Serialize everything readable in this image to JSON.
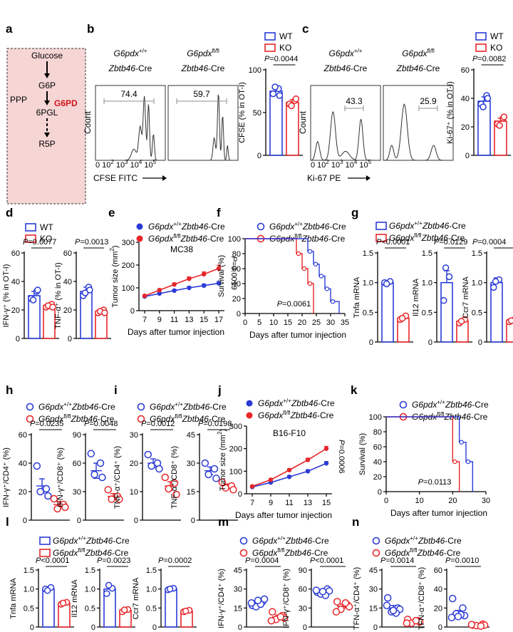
{
  "colors": {
    "wt": "#2b3bd6",
    "ko": "#e8262a",
    "pathway_bg": "#f6d5d5",
    "g6pd": "#d1141b",
    "gate": "#8c8c8c"
  },
  "panel_letters": [
    "a",
    "b",
    "c",
    "d",
    "e",
    "f",
    "g",
    "h",
    "i",
    "j",
    "k",
    "l",
    "m",
    "n"
  ],
  "panel_a": {
    "nodes": [
      "Glucose",
      "G6P",
      "6PGL",
      "R5P"
    ],
    "ppp": "PPP",
    "enzyme": "G6PD"
  },
  "flow_b": {
    "legend": [
      {
        "label": "WT",
        "group": "wt"
      },
      {
        "label": "KO",
        "group": "ko"
      }
    ],
    "plots": [
      {
        "title1": "G6pdx",
        "sup": "+/+",
        "title2": "Zbtb46-Cre",
        "gate": "74.4"
      },
      {
        "title1": "G6pdx",
        "sup": "fl/fl",
        "title2": "Zbtb46-Cre",
        "gate": "59.7"
      }
    ],
    "xticks": [
      "0",
      "10",
      "2",
      "10",
      "3",
      "10",
      "4",
      "10",
      "5"
    ],
    "xlabel": "CFSE FITC",
    "ylabel": "Count"
  },
  "flow_c": {
    "legend": [
      {
        "label": "WT",
        "group": "wt"
      },
      {
        "label": "KO",
        "group": "ko"
      }
    ],
    "plots": [
      {
        "title1": "G6pdx",
        "sup": "+/+",
        "title2": "Zbtb46-Cre",
        "gate": "43.3"
      },
      {
        "title1": "G6pdx",
        "sup": "fl/fl",
        "title2": "Zbtb46-Cre",
        "gate": "25.9"
      }
    ],
    "xlabel": "Ki-67 PE"
  },
  "labels": {
    "wt": "WT",
    "ko": "KO",
    "g6pdx": "G6pdx",
    "zbtb": "Zbtb46",
    "cre": "-Cre",
    "sup_wt": "+/+",
    "sup_ko": "fl/fl",
    "mc38": "MC38",
    "b16": "B16-F10",
    "days": "Days after tumor injection",
    "tumor_size": "Tumor size (mm",
    "survival": "Survival (%)",
    "p_e": "P=0.0019",
    "p_f": "P=0.0061",
    "p_j": "P=0.0006",
    "p_k": "P=0.0113"
  },
  "chart_data": [
    {
      "id": "b_bar",
      "type": "bar",
      "ylabel": "CFSE (% in OT-I)",
      "ylim": [
        0,
        100
      ],
      "yticks": [
        "0",
        "50",
        "100"
      ],
      "p": "P=0.0044",
      "series": [
        {
          "group": "wt",
          "mean": 75,
          "sem": 4,
          "points": [
            72,
            78,
            80,
            70
          ]
        },
        {
          "group": "ko",
          "mean": 62,
          "sem": 3,
          "points": [
            60,
            64,
            58,
            66
          ]
        }
      ]
    },
    {
      "id": "c_bar",
      "type": "bar",
      "ylabel": "Ki-67⁺ (% in OT-I)",
      "ylim": [
        0,
        60
      ],
      "yticks": [
        "0",
        "20",
        "40",
        "60"
      ],
      "p": "P=0.0082",
      "series": [
        {
          "group": "wt",
          "mean": 38,
          "sem": 3,
          "points": [
            36,
            42,
            34,
            40
          ]
        },
        {
          "group": "ko",
          "mean": 24,
          "sem": 2,
          "points": [
            22,
            26,
            21,
            27
          ]
        }
      ]
    },
    {
      "id": "d1",
      "type": "bar",
      "ylabel": "IFN-γ⁺ (% in OT-I)",
      "ylim": [
        0,
        60
      ],
      "yticks": [
        "0",
        "20",
        "40",
        "60"
      ],
      "p": "P=0.0077",
      "series": [
        {
          "group": "wt",
          "mean": 30,
          "sem": 3,
          "points": [
            28,
            33,
            27,
            34
          ]
        },
        {
          "group": "ko",
          "mean": 23,
          "sem": 1,
          "points": [
            22,
            24,
            23,
            22
          ]
        }
      ]
    },
    {
      "id": "d2",
      "type": "bar",
      "ylabel": "TNF-α⁺ (% in OT-I)",
      "ylim": [
        0,
        60
      ],
      "yticks": [
        "0",
        "20",
        "40",
        "60"
      ],
      "p": "P=0.0013",
      "series": [
        {
          "group": "wt",
          "mean": 33,
          "sem": 3,
          "points": [
            30,
            36,
            32,
            34
          ]
        },
        {
          "group": "ko",
          "mean": 19,
          "sem": 1,
          "points": [
            18,
            20,
            19,
            18
          ]
        }
      ]
    },
    {
      "id": "e",
      "type": "line",
      "xlabel": "Days after tumor injection",
      "ylabel": "Tumor size (mm2)",
      "x": [
        7,
        9,
        11,
        13,
        15,
        17
      ],
      "ylim": [
        0,
        300
      ],
      "yticks": [
        "0",
        "100",
        "200",
        "300"
      ],
      "title": "MC38",
      "p": "P=0.0019",
      "series": [
        {
          "group": "wt",
          "name": "G6pdx+/+Zbtb46-Cre",
          "values": [
            62,
            75,
            88,
            100,
            110,
            120
          ],
          "sem": [
            4,
            5,
            5,
            6,
            7,
            8
          ]
        },
        {
          "group": "ko",
          "name": "G6pdxfl/flZbtb46-Cre",
          "values": [
            65,
            90,
            115,
            140,
            160,
            185
          ],
          "sem": [
            4,
            6,
            7,
            8,
            10,
            14
          ]
        }
      ]
    },
    {
      "id": "f",
      "type": "line",
      "xlabel": "Days after tumor injection",
      "ylabel": "Survival (%)",
      "x": [
        0,
        5,
        10,
        15,
        20,
        25,
        30,
        35
      ],
      "ylim": [
        0,
        100
      ],
      "yticks": [
        "0",
        "20",
        "40",
        "60",
        "80",
        "100"
      ],
      "p": "P=0.0061",
      "series": [
        {
          "group": "wt",
          "name": "G6pdx+/+Zbtb46-Cre",
          "steps": [
            [
              0,
              100
            ],
            [
              22,
              100
            ],
            [
              22,
              83
            ],
            [
              24,
              83
            ],
            [
              24,
              66
            ],
            [
              26,
              66
            ],
            [
              26,
              50
            ],
            [
              28,
              50
            ],
            [
              28,
              33
            ],
            [
              30,
              33
            ],
            [
              30,
              16
            ],
            [
              33,
              16
            ],
            [
              33,
              0
            ]
          ]
        },
        {
          "group": "ko",
          "name": "G6pdxfl/flZbtb46-Cre",
          "steps": [
            [
              0,
              100
            ],
            [
              18,
              100
            ],
            [
              18,
              80
            ],
            [
              20,
              80
            ],
            [
              20,
              60
            ],
            [
              22,
              60
            ],
            [
              22,
              40
            ],
            [
              24,
              40
            ],
            [
              24,
              0
            ]
          ]
        }
      ]
    },
    {
      "id": "g1",
      "type": "bar",
      "ylabel": "Tnfa mRNA",
      "ylim": [
        0,
        1.5
      ],
      "yticks": [
        "0",
        "0.5",
        "1.0",
        "1.5"
      ],
      "p": "P<0.0001",
      "series": [
        {
          "group": "wt",
          "mean": 1.0,
          "sem": 0.03,
          "points": [
            1.0,
            1.02,
            0.98
          ]
        },
        {
          "group": "ko",
          "mean": 0.4,
          "sem": 0.04,
          "points": [
            0.38,
            0.44,
            0.4
          ]
        }
      ]
    },
    {
      "id": "g2",
      "type": "bar",
      "ylabel": "Il12 mRNA",
      "ylim": [
        0,
        1.5
      ],
      "yticks": [
        "0",
        "0.5",
        "1.0",
        "1.5"
      ],
      "p": "P=0.0129",
      "series": [
        {
          "group": "wt",
          "mean": 1.0,
          "sem": 0.2,
          "points": [
            0.7,
            1.1,
            1.25
          ]
        },
        {
          "group": "ko",
          "mean": 0.35,
          "sem": 0.04,
          "points": [
            0.32,
            0.38,
            0.35
          ]
        }
      ]
    },
    {
      "id": "g3",
      "type": "bar",
      "ylabel": "Ccr7 mRNA",
      "ylim": [
        0,
        1.5
      ],
      "yticks": [
        "0",
        "0.5",
        "1.0",
        "1.5"
      ],
      "p": "P=0.0004",
      "series": [
        {
          "group": "wt",
          "mean": 1.0,
          "sem": 0.08,
          "points": [
            0.92,
            1.05,
            1.02
          ]
        },
        {
          "group": "ko",
          "mean": 0.36,
          "sem": 0.03,
          "points": [
            0.34,
            0.38,
            0.36
          ]
        }
      ]
    },
    {
      "id": "h1",
      "type": "scatter",
      "ylabel": "IFN-γ⁺/CD4⁺ (%)",
      "ylim": [
        0,
        60
      ],
      "yticks": [
        "0",
        "20",
        "40",
        "60"
      ],
      "p": "P=0.0235",
      "series": [
        {
          "group": "wt",
          "mean": 24,
          "sem": 5,
          "points": [
            38,
            22,
            20,
            17
          ]
        },
        {
          "group": "ko",
          "mean": 11,
          "sem": 2,
          "points": [
            15,
            11,
            8,
            9
          ]
        }
      ]
    },
    {
      "id": "h2",
      "type": "scatter",
      "ylabel": "IFN-γ⁺/CD8⁺ (%)",
      "ylim": [
        0,
        90
      ],
      "yticks": [
        "0",
        "30",
        "60",
        "90"
      ],
      "p": "P=0.0048",
      "series": [
        {
          "group": "wt",
          "mean": 52,
          "sem": 8,
          "points": [
            70,
            60,
            48,
            45
          ]
        },
        {
          "group": "ko",
          "mean": 25,
          "sem": 3,
          "points": [
            32,
            25,
            22,
            22
          ]
        }
      ]
    },
    {
      "id": "i1",
      "type": "scatter",
      "ylabel": "TNF-α⁺/CD4⁺ (%)",
      "ylim": [
        0,
        30
      ],
      "yticks": [
        "0",
        "10",
        "20",
        "30"
      ],
      "p": "P=0.0012",
      "series": [
        {
          "group": "wt",
          "mean": 20,
          "sem": 1.5,
          "points": [
            23,
            20,
            19,
            18
          ]
        },
        {
          "group": "ko",
          "mean": 12,
          "sem": 1.5,
          "points": [
            15,
            13,
            11,
            9
          ]
        }
      ]
    },
    {
      "id": "i2",
      "type": "scatter",
      "ylabel": "TNF-α⁺/CD8⁺ (%)",
      "ylim": [
        0,
        45
      ],
      "yticks": [
        "0",
        "15",
        "30",
        "45"
      ],
      "p": "P=0.0198",
      "series": [
        {
          "group": "wt",
          "mean": 26,
          "sem": 2,
          "points": [
            30,
            27,
            24,
            22
          ]
        },
        {
          "group": "ko",
          "mean": 18,
          "sem": 1,
          "points": [
            20,
            18,
            17,
            16
          ]
        }
      ]
    },
    {
      "id": "j",
      "type": "line",
      "xlabel": "Days after tumor injection",
      "ylabel": "Tumor size (mm2)",
      "x": [
        7,
        9,
        11,
        13,
        15
      ],
      "ylim": [
        0,
        300
      ],
      "yticks": [
        "0",
        "100",
        "200",
        "300"
      ],
      "title": "B16-F10",
      "p": "P=0.0006",
      "series": [
        {
          "group": "wt",
          "name": "G6pdx+/+Zbtb46-Cre",
          "values": [
            30,
            50,
            75,
            100,
            135
          ],
          "sem": [
            3,
            4,
            5,
            6,
            8
          ]
        },
        {
          "group": "ko",
          "name": "G6pdxfl/flZbtb46-Cre",
          "values": [
            33,
            62,
            105,
            150,
            200
          ],
          "sem": [
            3,
            5,
            6,
            8,
            10
          ]
        }
      ]
    },
    {
      "id": "k",
      "type": "line",
      "xlabel": "Days after tumor injection",
      "ylabel": "Survival (%)",
      "x": [
        0,
        10,
        20,
        30
      ],
      "ylim": [
        0,
        100
      ],
      "yticks": [
        "0",
        "20",
        "40",
        "60",
        "80",
        "100"
      ],
      "p": "P=0.0113",
      "series": [
        {
          "group": "wt",
          "name": "G6pdx+/+Zbtb46-Cre",
          "steps": [
            [
              0,
              100
            ],
            [
              22,
              100
            ],
            [
              22,
              66
            ],
            [
              24,
              66
            ],
            [
              24,
              40
            ],
            [
              26,
              40
            ],
            [
              26,
              0
            ]
          ]
        },
        {
          "group": "ko",
          "name": "G6pdxfl/flZbtb46-Cre",
          "steps": [
            [
              0,
              100
            ],
            [
              20,
              100
            ],
            [
              20,
              40
            ],
            [
              22,
              40
            ],
            [
              22,
              0
            ]
          ]
        }
      ]
    },
    {
      "id": "l1",
      "type": "bar",
      "ylabel": "Tnfa mRNA",
      "ylim": [
        0,
        1.5
      ],
      "yticks": [
        "0",
        "0.5",
        "1.0",
        "1.5"
      ],
      "p": "P<0.0001",
      "series": [
        {
          "group": "wt",
          "mean": 1.0,
          "sem": 0.03,
          "points": [
            1.0,
            1.04,
            0.96
          ]
        },
        {
          "group": "ko",
          "mean": 0.63,
          "sem": 0.02,
          "points": [
            0.6,
            0.65,
            0.63
          ]
        }
      ]
    },
    {
      "id": "l2",
      "type": "bar",
      "ylabel": "Il12 mRNA",
      "ylim": [
        0,
        1.5
      ],
      "yticks": [
        "0",
        "0.5",
        "1.0",
        "1.5"
      ],
      "p": "P=0.0023",
      "series": [
        {
          "group": "wt",
          "mean": 1.0,
          "sem": 0.07,
          "points": [
            0.88,
            1.02,
            1.1
          ]
        },
        {
          "group": "ko",
          "mean": 0.44,
          "sem": 0.03,
          "points": [
            0.4,
            0.46,
            0.45
          ]
        }
      ]
    },
    {
      "id": "l3",
      "type": "bar",
      "ylabel": "Ccr7 mRNA",
      "ylim": [
        0,
        1.5
      ],
      "yticks": [
        "0",
        "0.5",
        "1.0",
        "1.5"
      ],
      "p": "P=0.0002",
      "series": [
        {
          "group": "wt",
          "mean": 1.0,
          "sem": 0.02,
          "points": [
            0.98,
            1.02,
            1.0
          ]
        },
        {
          "group": "ko",
          "mean": 0.42,
          "sem": 0.02,
          "points": [
            0.4,
            0.44,
            0.42
          ]
        }
      ]
    },
    {
      "id": "m1",
      "type": "scatter",
      "ylabel": "IFN-γ⁺/CD4⁺ (%)",
      "ylim": [
        0,
        45
      ],
      "yticks": [
        "0",
        "15",
        "30",
        "45"
      ],
      "p": "P=0.0004",
      "series": [
        {
          "group": "wt",
          "mean": 19,
          "sem": 1.5,
          "points": [
            17,
            20,
            16,
            22,
            19,
            18,
            21
          ]
        },
        {
          "group": "ko",
          "mean": 8,
          "sem": 1.5,
          "points": [
            12,
            9,
            6,
            7,
            5,
            8
          ]
        }
      ]
    },
    {
      "id": "m2",
      "type": "scatter",
      "ylabel": "IFN-γ⁺/CD8⁺ (%)",
      "ylim": [
        0,
        90
      ],
      "yticks": [
        "0",
        "30",
        "60",
        "90"
      ],
      "p": "P<0.0001",
      "series": [
        {
          "group": "wt",
          "mean": 56,
          "sem": 2,
          "points": [
            55,
            60,
            52,
            57,
            58,
            50,
            56
          ]
        },
        {
          "group": "ko",
          "mean": 33,
          "sem": 3,
          "points": [
            40,
            35,
            28,
            32,
            24,
            38
          ]
        }
      ]
    },
    {
      "id": "n1",
      "type": "scatter",
      "ylabel": "TFN-α⁺/CD4⁺ (%)",
      "ylim": [
        0,
        45
      ],
      "yticks": [
        "0",
        "15",
        "30",
        "45"
      ],
      "p": "P=0.0014",
      "series": [
        {
          "group": "wt",
          "mean": 15,
          "sem": 2,
          "points": [
            23,
            15,
            12,
            14,
            17,
            11,
            13
          ]
        },
        {
          "group": "ko",
          "mean": 4,
          "sem": 1,
          "points": [
            6,
            5,
            3,
            4,
            3,
            5
          ]
        }
      ]
    },
    {
      "id": "n2",
      "type": "scatter",
      "ylabel": "TFN-α⁺/CD8⁺ (%)",
      "ylim": [
        0,
        60
      ],
      "yticks": [
        "0",
        "20",
        "40",
        "60"
      ],
      "p": "P=0.0010",
      "series": [
        {
          "group": "wt",
          "mean": 15,
          "sem": 2.5,
          "points": [
            30,
            20,
            14,
            12,
            10,
            13,
            11
          ]
        },
        {
          "group": "ko",
          "mean": 2,
          "sem": 0.5,
          "points": [
            2,
            3,
            1.5,
            2,
            2.5,
            1
          ]
        }
      ]
    }
  ]
}
